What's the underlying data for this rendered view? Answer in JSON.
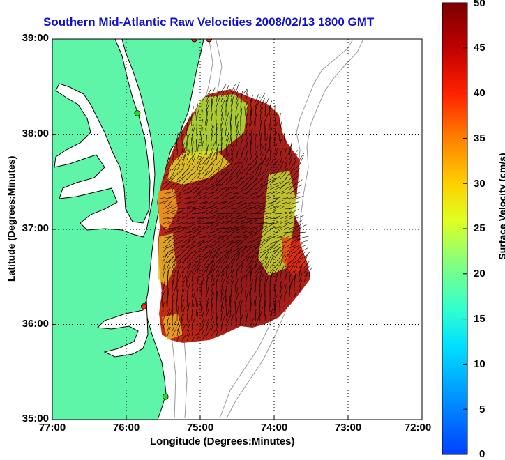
{
  "title": "Southern Mid-Atlantic Raw Velocities 2008/02/13 1800 GMT",
  "x_axis": {
    "label": "Longitude (Degrees:Minutes)",
    "ticks": [
      "77:00",
      "76:00",
      "75:00",
      "74:00",
      "73:00",
      "72:00"
    ]
  },
  "y_axis": {
    "label": "Latitude (Degrees:Minutes)",
    "ticks": [
      "39:00",
      "38:00",
      "37:00",
      "36:00",
      "35:00"
    ]
  },
  "colorbar": {
    "label": "Surface Velocity (cm/s)",
    "ticks": [
      "50",
      "45",
      "40",
      "35",
      "30",
      "25",
      "20",
      "15",
      "10",
      "5",
      "0"
    ],
    "range": [
      0,
      50
    ],
    "colormap": "jet"
  },
  "colors": {
    "land": "#5ef5a8",
    "ocean": "#ffffff",
    "title": "#1010d0",
    "vectors": "#000000",
    "bathymetry": "#999999",
    "site_green": "#22dd22",
    "site_red": "#ff2222"
  },
  "chart_data": {
    "type": "heatmap",
    "xlim": [
      -77,
      -72
    ],
    "ylim": [
      35,
      39
    ],
    "clim": [
      0,
      50
    ],
    "grid": true,
    "sites": [
      {
        "lon": -75.08,
        "lat": 39.0,
        "color": "red"
      },
      {
        "lon": -74.88,
        "lat": 39.0,
        "color": "red"
      },
      {
        "lon": -75.85,
        "lat": 38.22,
        "color": "green"
      },
      {
        "lon": -75.76,
        "lat": 36.19,
        "color": "red"
      },
      {
        "lon": -75.47,
        "lat": 35.24,
        "color": "green"
      }
    ]
  }
}
